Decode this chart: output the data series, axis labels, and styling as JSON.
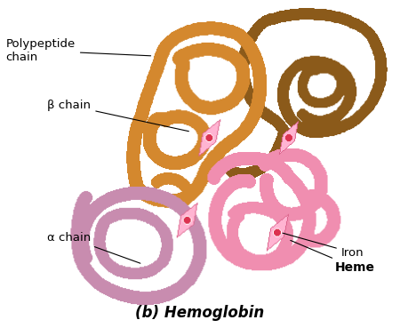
{
  "title": "(b) Hemoglobin",
  "background_color": "#ffffff",
  "labels": {
    "polypeptide_chain": "Polypeptide\nchain",
    "beta_chain": "β chain",
    "alpha_chain": "α chain",
    "iron": "Iron",
    "heme": "Heme"
  },
  "colors": {
    "beta_orange": "#D4882E",
    "beta_dark": "#8B5A1A",
    "alpha_pink_light": "#F08EB0",
    "alpha_pink_dark": "#C878A0",
    "heme_pink": "#FFB8D0",
    "iron_red": "#CC1010",
    "label_color": "#000000"
  },
  "figsize": [
    4.5,
    3.69
  ],
  "dpi": 100
}
